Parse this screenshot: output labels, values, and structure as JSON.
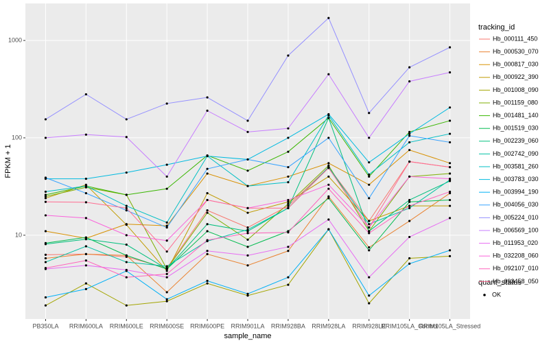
{
  "chart_data": {
    "type": "line",
    "x_label": "sample_name",
    "y_label": "FPKM + 1",
    "legend_title": "tracking_id",
    "legend2_title": "quant_status",
    "legend2_items": [
      "OK"
    ],
    "yscale": "log",
    "grid": true,
    "legend_position": "right",
    "categories": [
      "PB350LA",
      "RRIM600LA",
      "RRIM600LE",
      "RRIM600SE",
      "RRIM600PE",
      "RRIM901LA",
      "RRIM928BA",
      "RRIM928LA",
      "RRIM928LE",
      "RRIM105LA_Control",
      "RRIM105LA_Stressed"
    ],
    "ylim": [
      1.38,
      2400
    ],
    "yticks": [
      10,
      100,
      1000
    ],
    "series": [
      {
        "name": "Hb_000111_450",
        "color": "#F8766D",
        "values": [
          6.3,
          6.4,
          6,
          4.6,
          18,
          12,
          20,
          50,
          14,
          57,
          50
        ]
      },
      {
        "name": "Hb_000530_070",
        "color": "#EA8331",
        "values": [
          5.8,
          6.4,
          6.2,
          2.6,
          6.4,
          4.9,
          6.9,
          25,
          7.5,
          14,
          27
        ]
      },
      {
        "name": "Hb_000817_030",
        "color": "#D89000",
        "values": [
          11,
          9.3,
          13,
          12.5,
          43,
          32,
          40,
          55,
          33,
          75,
          55
        ]
      },
      {
        "name": "Hb_000922_390",
        "color": "#C09B00",
        "values": [
          24,
          33,
          12.8,
          4.3,
          27,
          17,
          22,
          40,
          14,
          20,
          20
        ]
      },
      {
        "name": "Hb_001008_090",
        "color": "#A3A500",
        "values": [
          1.9,
          3.2,
          1.9,
          2.1,
          3.2,
          2.4,
          3.1,
          11.5,
          2.0,
          5.8,
          6.1
        ]
      },
      {
        "name": "Hb_001159_080",
        "color": "#7CAE00",
        "values": [
          25,
          31,
          26,
          4.5,
          17,
          9,
          21,
          52,
          11,
          40,
          43
        ]
      },
      {
        "name": "Hb_001481_140",
        "color": "#39B600",
        "values": [
          26,
          32,
          26,
          30,
          66,
          46,
          72,
          160,
          40,
          115,
          150
        ]
      },
      {
        "name": "Hb_001519_030",
        "color": "#00BB4E",
        "values": [
          8.3,
          9.5,
          6.2,
          4.5,
          11,
          7.6,
          11,
          24,
          7,
          22,
          23
        ]
      },
      {
        "name": "Hb_002239_060",
        "color": "#00BF7D",
        "values": [
          8.1,
          9.1,
          8,
          4.5,
          13,
          11,
          19,
          160,
          11,
          23,
          36
        ]
      },
      {
        "name": "Hb_002742_090",
        "color": "#00C1A3",
        "values": [
          5.3,
          7.7,
          5.3,
          4.8,
          8.7,
          11.4,
          19,
          50,
          13,
          19,
          37
        ]
      },
      {
        "name": "Hb_003581_260",
        "color": "#00BFC4",
        "values": [
          28,
          32,
          20,
          13.5,
          65,
          32,
          35,
          170,
          42,
          90,
          110
        ]
      },
      {
        "name": "Hb_003783_030",
        "color": "#00BAE0",
        "values": [
          38,
          38,
          44,
          53,
          65,
          60,
          100,
          175,
          56,
          110,
          205
        ]
      },
      {
        "name": "Hb_003994_190",
        "color": "#00B0F6",
        "values": [
          2.3,
          2.8,
          4.3,
          2.2,
          3.4,
          2.5,
          3.7,
          11.5,
          2.4,
          5.1,
          7.0
        ]
      },
      {
        "name": "Hb_004056_030",
        "color": "#35A2FF",
        "values": [
          39,
          27,
          18,
          12,
          48,
          60,
          50,
          100,
          24,
          105,
          90
        ]
      },
      {
        "name": "Hb_005224_010",
        "color": "#9590FF",
        "values": [
          155,
          280,
          155,
          225,
          260,
          150,
          700,
          1700,
          180,
          530,
          850
        ]
      },
      {
        "name": "Hb_006569_100",
        "color": "#C77CFF",
        "values": [
          100,
          108,
          102,
          40,
          190,
          115,
          125,
          450,
          100,
          380,
          470
        ]
      },
      {
        "name": "Hb_011953_020",
        "color": "#E76BF3",
        "values": [
          4.5,
          4.9,
          4.4,
          3.7,
          6.9,
          6.2,
          7.6,
          14.5,
          3.7,
          9.6,
          15
        ]
      },
      {
        "name": "Hb_032208_060",
        "color": "#FA62DB",
        "values": [
          16,
          15,
          10,
          8.8,
          23,
          19,
          23,
          33,
          12,
          40,
          38
        ]
      },
      {
        "name": "Hb_092107_010",
        "color": "#FF62BC",
        "values": [
          4.6,
          5.5,
          3.7,
          4.0,
          8.9,
          10.5,
          10.7,
          30,
          10.5,
          20,
          28
        ]
      },
      {
        "name": "Hb_093458_050",
        "color": "#FF6C91",
        "values": [
          22,
          21.8,
          19,
          6.8,
          23,
          19,
          19,
          49,
          12,
          57,
          50
        ]
      }
    ]
  }
}
